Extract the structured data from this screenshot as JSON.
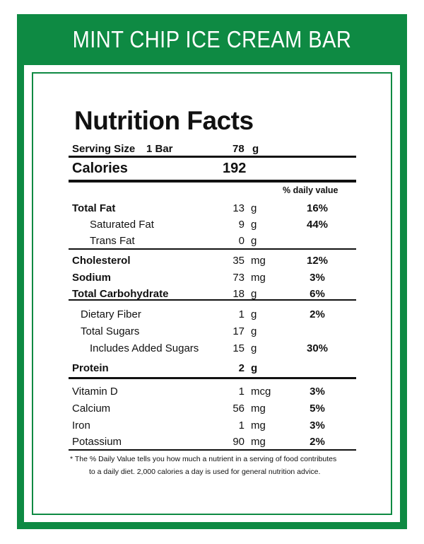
{
  "banner": {
    "title": "MINT CHIP ICE CREAM BAR"
  },
  "label": {
    "heading": "Nutrition Facts",
    "serving": {
      "label": "Serving Size",
      "size": "1 Bar",
      "amount": "78",
      "unit": "g"
    },
    "calories": {
      "label": "Calories",
      "value": "192"
    },
    "dv_header": "% daily value",
    "nutrients": [
      {
        "name": "Total Fat",
        "amount": "13",
        "unit": "g",
        "dv": "16%"
      },
      {
        "name": "Saturated Fat",
        "amount": "9",
        "unit": "g",
        "dv": "44%"
      },
      {
        "name": "Trans Fat",
        "amount": "0",
        "unit": "g",
        "dv": ""
      },
      {
        "name": "Cholesterol",
        "amount": "35",
        "unit": "mg",
        "dv": "12%"
      },
      {
        "name": "Sodium",
        "amount": "73",
        "unit": "mg",
        "dv": "3%"
      },
      {
        "name": "Total Carbohydrate",
        "amount": "18",
        "unit": "g",
        "dv": "6%"
      },
      {
        "name": "Dietary Fiber",
        "amount": "1",
        "unit": "g",
        "dv": "2%"
      },
      {
        "name": "Total Sugars",
        "amount": "17",
        "unit": "g",
        "dv": ""
      },
      {
        "name": "Includes Added Sugars",
        "amount": "15",
        "unit": "g",
        "dv": "30%"
      },
      {
        "name": "Protein",
        "amount": "2",
        "unit": "g",
        "dv": ""
      },
      {
        "name": "Vitamin D",
        "amount": "1",
        "unit": "mcg",
        "dv": "3%"
      },
      {
        "name": "Calcium",
        "amount": "56",
        "unit": "mg",
        "dv": "5%"
      },
      {
        "name": "Iron",
        "amount": "1",
        "unit": "mg",
        "dv": "3%"
      },
      {
        "name": "Potassium",
        "amount": "90",
        "unit": "mg",
        "dv": "2%"
      }
    ],
    "footnote_line1": "* The % Daily Value tells you how much a nutrient in a serving of food contributes",
    "footnote_line2": "to a daily diet. 2,000 calories a day is used for general nutrition advice."
  },
  "colors": {
    "brand_green": "#0e8a43",
    "text": "#111111",
    "background": "#ffffff"
  }
}
